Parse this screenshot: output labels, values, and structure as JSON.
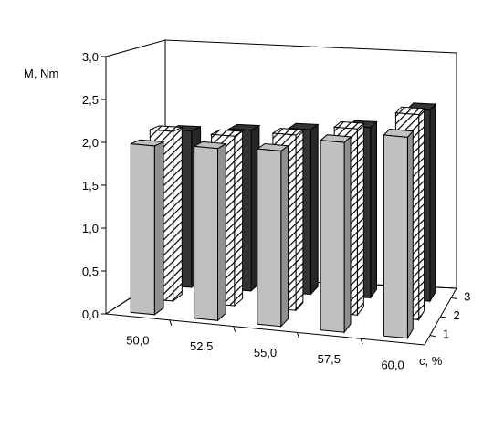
{
  "chart_data": {
    "type": "bar",
    "ylabel": "M, Nm",
    "zlabel": "c, %",
    "categories": [
      "50,0",
      "52,5",
      "55,0",
      "57,5",
      "60,0"
    ],
    "y_ticks": [
      "0,0",
      "0,5",
      "1,0",
      "1,5",
      "2,0",
      "2,5",
      "3,0"
    ],
    "ylim": [
      0,
      3.0
    ],
    "depth_ticks": [
      "1",
      "2",
      "3"
    ],
    "series": [
      {
        "values": [
          1.98,
          2.02,
          2.06,
          2.23,
          2.36
        ],
        "fill": "#c0c0c0",
        "pattern": "solid"
      },
      {
        "values": [
          2.05,
          2.05,
          2.12,
          2.25,
          2.48
        ],
        "fill": "#ffffff",
        "pattern": "hatch"
      },
      {
        "values": [
          1.95,
          2.0,
          2.05,
          2.12,
          2.38
        ],
        "fill": "#333333",
        "pattern": "solid"
      }
    ],
    "grid": false
  }
}
